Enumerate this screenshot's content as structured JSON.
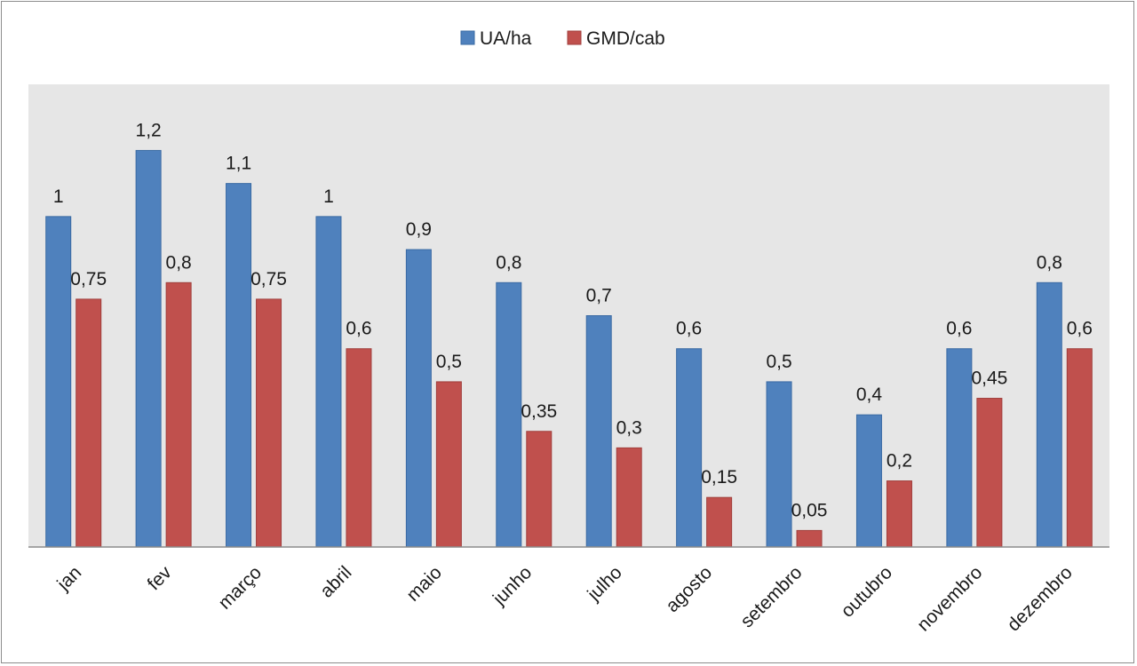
{
  "chart_data": {
    "type": "bar",
    "categories": [
      "jan",
      "fev",
      "março",
      "abril",
      "maio",
      "junho",
      "julho",
      "agosto",
      "setembro",
      "outubro",
      "novembro",
      "dezembro"
    ],
    "series": [
      {
        "name": "UA/ha",
        "color": "#4f81bd",
        "values": [
          1,
          1.2,
          1.1,
          1,
          0.9,
          0.8,
          0.7,
          0.6,
          0.5,
          0.4,
          0.6,
          0.8
        ],
        "labels": [
          "1",
          "1,2",
          "1,1",
          "1",
          "0,9",
          "0,8",
          "0,7",
          "0,6",
          "0,5",
          "0,4",
          "0,6",
          "0,8"
        ]
      },
      {
        "name": "GMD/cab",
        "color": "#c0504d",
        "values": [
          0.75,
          0.8,
          0.75,
          0.6,
          0.5,
          0.35,
          0.3,
          0.15,
          0.05,
          0.2,
          0.45,
          0.6
        ],
        "labels": [
          "0,75",
          "0,8",
          "0,75",
          "0,6",
          "0,5",
          "0,35",
          "0,3",
          "0,15",
          "0,05",
          "0,2",
          "0,45",
          "0,6"
        ]
      }
    ],
    "ylim": [
      0,
      1.4
    ],
    "legend_position": "top-center",
    "plot_background": "#e6e6e6",
    "grid": false
  }
}
